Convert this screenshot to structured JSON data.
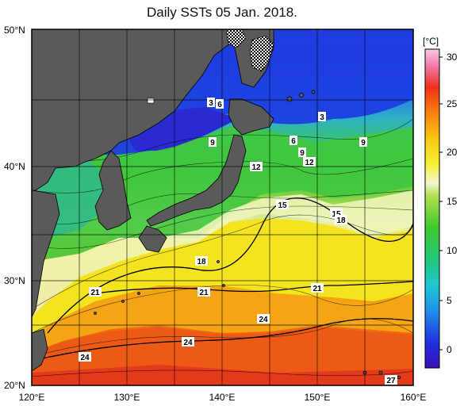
{
  "title": "Daily SSTs 05 Jan. 2018.",
  "unit": "[°C]",
  "lon_labels": [
    "120°E",
    "130°E",
    "140°E",
    "150°E",
    "160°E"
  ],
  "lat_labels": [
    "50°N",
    "40°N",
    "30°N",
    "20°N"
  ],
  "colorbar_ticks": [
    "30",
    "25",
    "20",
    "15",
    "10",
    "5",
    "0"
  ],
  "contour_labels": [
    "3",
    "6",
    "9",
    "3",
    "9",
    "6",
    "9",
    "12",
    "12",
    "15",
    "15",
    "18",
    "18",
    "21",
    "21",
    "21",
    "24",
    "24",
    "24",
    "27"
  ],
  "colors": {
    "land": "#595959",
    "warm": "#e8401a",
    "cold": "#1a2cd8"
  }
}
